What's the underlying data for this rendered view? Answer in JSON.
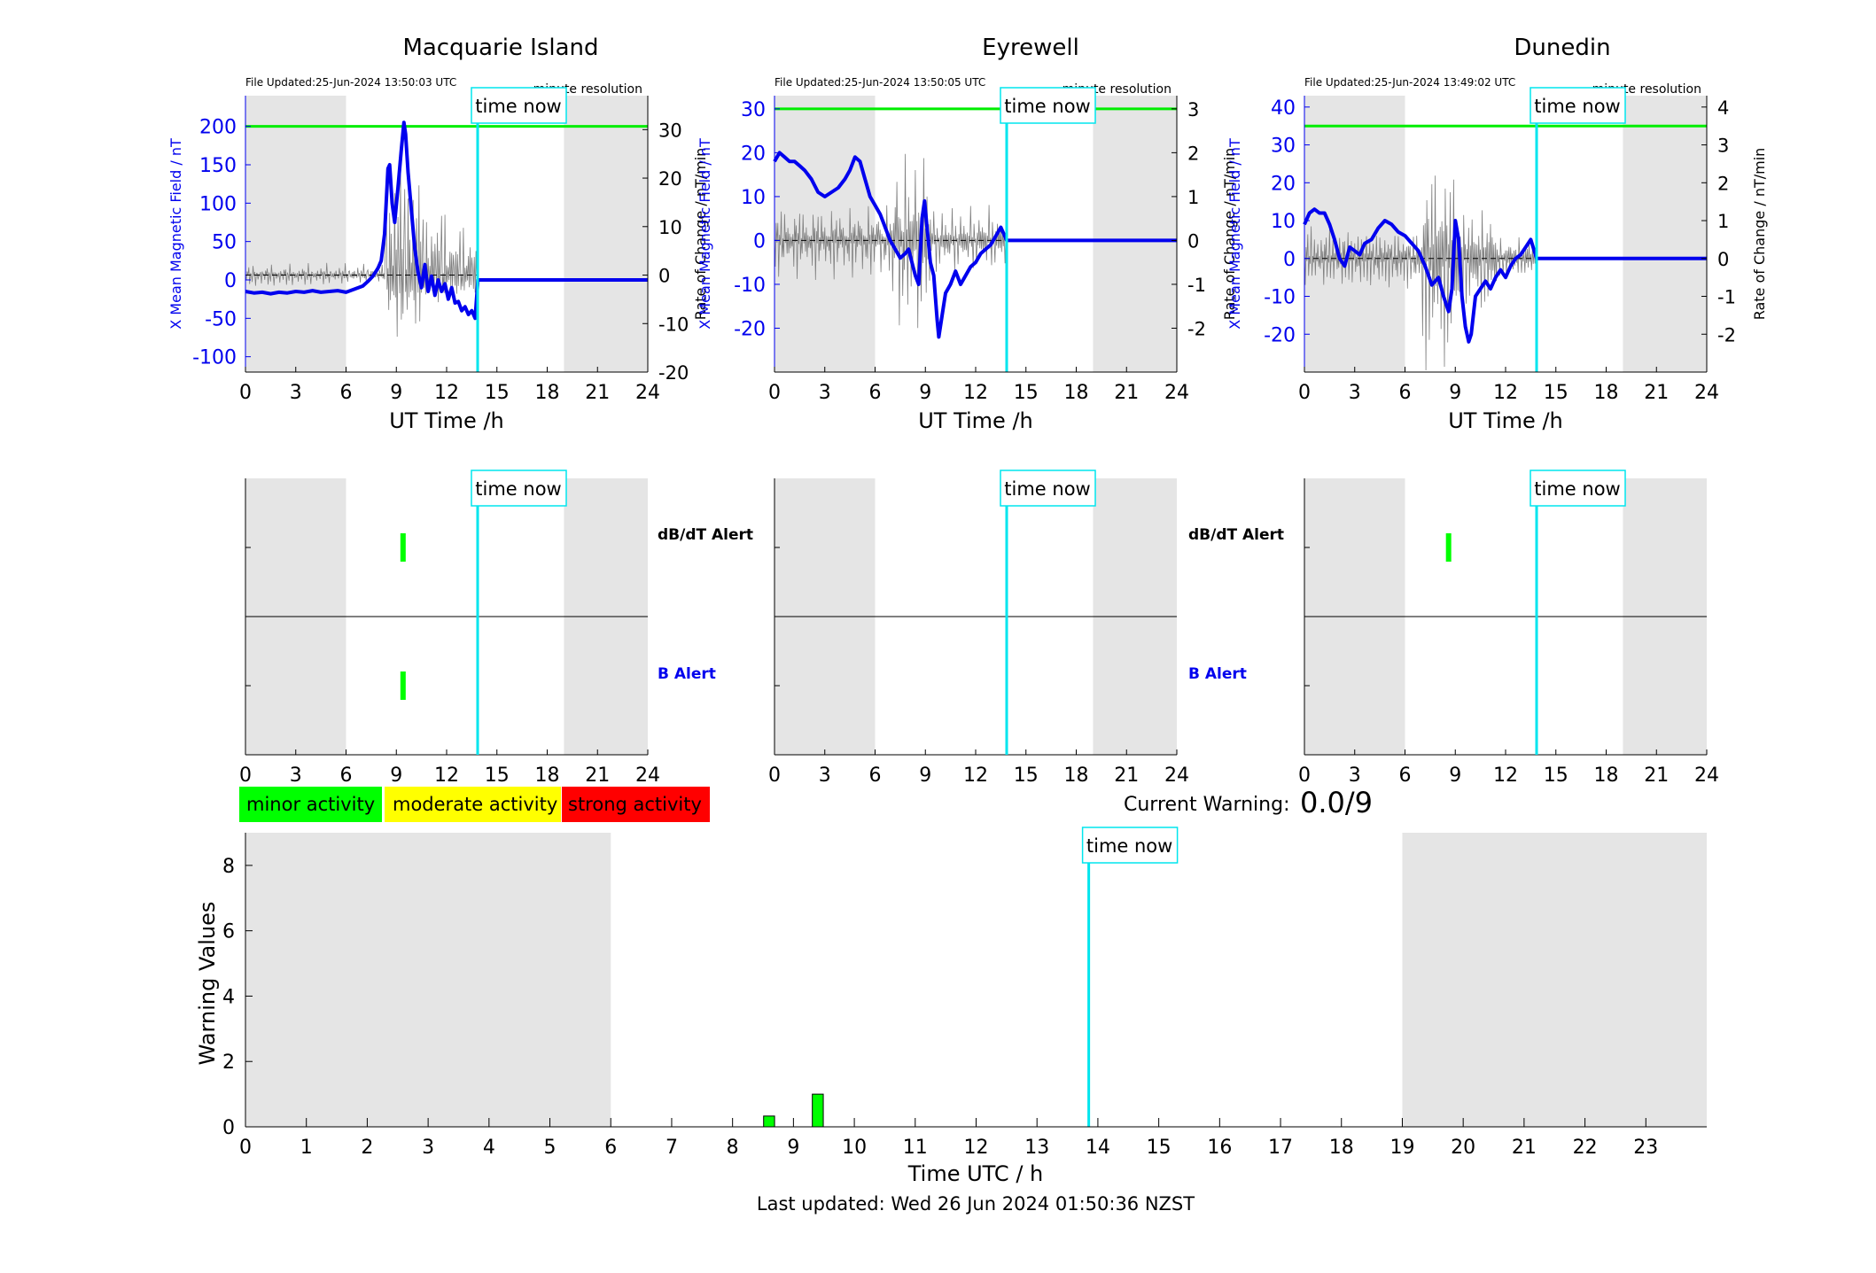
{
  "colors": {
    "night_shade": "#e5e5e5",
    "field_line": "#0000ee",
    "rate_line": "#808080",
    "threshold": "#00ee00",
    "time_now": "#00e5ee",
    "minor": "#00ff00",
    "moderate": "#ffff00",
    "strong": "#ff0000"
  },
  "labels": {
    "time_now": "time now",
    "ut_axis": "UT Time /h",
    "y_left": "X Mean Magnetic Field / nT",
    "y_right": "Rate of Change / nT/min",
    "resolution": "minute resolution",
    "dbdt_alert": "dB/dT Alert",
    "b_alert": "B Alert",
    "current_warning_label": "Current Warning:",
    "current_warning_value": "0.0/9",
    "warning_ylabel": "Warning Values",
    "warning_xlabel": "Time UTC / h",
    "last_updated": "Last updated: Wed 26 Jun 2024 01:50:36 NZST"
  },
  "legend": [
    {
      "label": "minor activity",
      "color": "#00ff00"
    },
    {
      "label": "moderate activity",
      "color": "#ffff00"
    },
    {
      "label": "strong activity",
      "color": "#ff0000"
    }
  ],
  "chart_data": [
    {
      "type": "line",
      "station": "Macquarie Island",
      "file_updated": "File Updated:25-Jun-2024 13:50:03 UTC",
      "xlim": [
        0,
        24
      ],
      "x_ticks": [
        0,
        3,
        6,
        9,
        12,
        15,
        18,
        21,
        24
      ],
      "ylim_left": [
        -120,
        240
      ],
      "y_ticks_left": [
        200,
        150,
        100,
        50,
        0,
        -50,
        -100
      ],
      "ylim_right": [
        -20,
        37
      ],
      "y_ticks_right": [
        30,
        20,
        10,
        0,
        -10,
        -20
      ],
      "threshold_left": 200,
      "night_shading": [
        [
          0,
          6
        ],
        [
          19,
          24
        ]
      ],
      "time_now": 13.85,
      "field_series": {
        "x": [
          0,
          0.5,
          1,
          1.5,
          2,
          2.5,
          3,
          3.5,
          4,
          4.5,
          5,
          5.5,
          6,
          6.5,
          7,
          7.3,
          7.6,
          7.9,
          8.1,
          8.3,
          8.5,
          8.6,
          8.75,
          8.9,
          9.1,
          9.3,
          9.45,
          9.55,
          9.7,
          9.9,
          10.1,
          10.3,
          10.5,
          10.7,
          10.9,
          11.1,
          11.3,
          11.5,
          11.7,
          11.9,
          12.1,
          12.3,
          12.5,
          12.7,
          12.9,
          13.1,
          13.3,
          13.5,
          13.7,
          13.85,
          13.86,
          24
        ],
        "y": [
          -15,
          -17,
          -16,
          -18,
          -16,
          -17,
          -15,
          -16,
          -14,
          -16,
          -15,
          -14,
          -16,
          -12,
          -8,
          -2,
          5,
          15,
          25,
          60,
          145,
          150,
          100,
          75,
          120,
          170,
          205,
          190,
          140,
          90,
          40,
          10,
          -10,
          20,
          -15,
          5,
          -20,
          0,
          -15,
          -5,
          -25,
          -10,
          -30,
          -28,
          -40,
          -35,
          -45,
          -40,
          -50,
          -5,
          0,
          0
        ]
      },
      "rate_noise": [
        0.5,
        -1,
        1.5,
        -0.5,
        2,
        -2,
        1,
        0.3,
        -1.5,
        2.5,
        -0.8,
        1.2,
        -2.2,
        0.7,
        1.8,
        -1.2,
        0.2,
        -0.6,
        2.1,
        -1.9,
        0.9,
        -0.3
      ],
      "rate_active": [
        [
          8.3,
          10.5,
          12
        ],
        [
          10.5,
          12,
          7
        ],
        [
          12,
          13.85,
          5
        ]
      ]
    },
    {
      "type": "line",
      "station": "Eyrewell",
      "file_updated": "File Updated:25-Jun-2024 13:50:05 UTC",
      "xlim": [
        0,
        24
      ],
      "x_ticks": [
        0,
        3,
        6,
        9,
        12,
        15,
        18,
        21,
        24
      ],
      "ylim_left": [
        -30,
        33
      ],
      "y_ticks_left": [
        30,
        20,
        10,
        0,
        -10,
        -20
      ],
      "ylim_right": [
        -3,
        3.3
      ],
      "y_ticks_right": [
        3,
        2,
        1,
        0,
        -1,
        -2
      ],
      "y_ticks_right_labels": [
        "3",
        "2",
        "1",
        "0",
        "-1",
        "-2"
      ],
      "threshold_left": 30,
      "night_shading": [
        [
          0,
          6
        ],
        [
          19,
          24
        ]
      ],
      "time_now": 13.85,
      "field_series": {
        "x": [
          0,
          0.3,
          0.6,
          0.9,
          1.2,
          1.5,
          1.8,
          2.2,
          2.6,
          3.0,
          3.4,
          3.8,
          4.2,
          4.5,
          4.8,
          5.1,
          5.4,
          5.7,
          6.0,
          6.3,
          6.6,
          6.9,
          7.2,
          7.5,
          7.8,
          8.0,
          8.2,
          8.4,
          8.6,
          8.8,
          8.95,
          9.1,
          9.3,
          9.5,
          9.7,
          9.8,
          10.0,
          10.2,
          10.5,
          10.8,
          11.1,
          11.4,
          11.7,
          12.0,
          12.3,
          12.6,
          12.9,
          13.2,
          13.5,
          13.85,
          14.0,
          24
        ],
        "y": [
          18,
          20,
          19,
          18,
          18,
          17,
          16,
          14,
          11,
          10,
          11,
          12,
          14,
          16,
          19,
          18,
          14,
          10,
          8,
          6,
          3,
          0,
          -2,
          -4,
          -3,
          -2,
          -5,
          -8,
          -10,
          5,
          9,
          3,
          -5,
          -8,
          -18,
          -22,
          -17,
          -12,
          -10,
          -7,
          -10,
          -8,
          -6,
          -5,
          -3,
          -2,
          -1,
          1,
          3,
          0,
          0,
          0
        ]
      },
      "rate_noise": [
        0.3,
        -0.6,
        0.8,
        -0.2,
        0.5,
        -0.9,
        0.4,
        -0.3,
        0.7,
        -0.5,
        0.2,
        -0.7,
        0.6,
        -0.1,
        0.9,
        -0.4,
        0.3,
        -0.8,
        0.5,
        -0.2,
        0.1,
        -0.6
      ],
      "rate_active": [
        [
          7,
          9.3,
          2.5
        ],
        [
          9.3,
          13.85,
          0.9
        ]
      ]
    },
    {
      "type": "line",
      "station": "Dunedin",
      "file_updated": "File Updated:25-Jun-2024 13:49:02 UTC",
      "xlim": [
        0,
        24
      ],
      "x_ticks": [
        0,
        3,
        6,
        9,
        12,
        15,
        18,
        21,
        24
      ],
      "ylim_left": [
        -30,
        43
      ],
      "y_ticks_left": [
        40,
        30,
        20,
        10,
        0,
        -10,
        -20
      ],
      "ylim_right": [
        -3,
        4.3
      ],
      "y_ticks_right": [
        4,
        3,
        2,
        1,
        0,
        -1,
        -2
      ],
      "threshold_left": 35,
      "night_shading": [
        [
          0,
          6
        ],
        [
          19,
          24
        ]
      ],
      "time_now": 13.85,
      "field_series": {
        "x": [
          0,
          0.3,
          0.6,
          0.9,
          1.2,
          1.5,
          1.8,
          2.1,
          2.4,
          2.7,
          3.0,
          3.3,
          3.6,
          4.0,
          4.4,
          4.8,
          5.2,
          5.6,
          6.0,
          6.4,
          6.8,
          7.2,
          7.6,
          8.0,
          8.3,
          8.6,
          8.8,
          9.0,
          9.2,
          9.4,
          9.6,
          9.8,
          9.95,
          10.2,
          10.5,
          10.8,
          11.1,
          11.4,
          11.7,
          12.0,
          12.3,
          12.6,
          12.9,
          13.2,
          13.5,
          13.85,
          13.86,
          24
        ],
        "y": [
          9,
          12,
          13,
          12,
          12,
          9,
          5,
          0,
          -2,
          3,
          2,
          1,
          4,
          5,
          8,
          10,
          9,
          7,
          6,
          4,
          2,
          -2,
          -7,
          -5,
          -10,
          -14,
          -8,
          10,
          5,
          -10,
          -18,
          -22,
          -20,
          -10,
          -8,
          -6,
          -8,
          -5,
          -3,
          -5,
          -2,
          0,
          1,
          3,
          5,
          0,
          0,
          0
        ]
      },
      "rate_noise": [
        0.4,
        -0.7,
        0.6,
        -0.3,
        0.8,
        -0.5,
        0.2,
        -0.4,
        0.9,
        -0.6,
        0.3,
        -0.2,
        0.5,
        -0.8,
        0.7,
        -0.1,
        0.4,
        -0.6,
        0.2,
        -0.3,
        0.6,
        -0.5
      ],
      "rate_active": [
        [
          7,
          9.2,
          3.7
        ],
        [
          9.2,
          11.5,
          2
        ],
        [
          11.5,
          13.85,
          0.8
        ]
      ]
    },
    {
      "type": "alert",
      "station": "Macquarie Island",
      "xlim": [
        0,
        24
      ],
      "x_ticks": [
        0,
        3,
        6,
        9,
        12,
        15,
        18,
        21,
        24
      ],
      "night_shading": [
        [
          0,
          6
        ],
        [
          19,
          24
        ]
      ],
      "time_now": 13.85,
      "dbdt_alerts": [
        9.4
      ],
      "b_alerts": [
        9.4
      ]
    },
    {
      "type": "alert",
      "station": "Eyrewell",
      "xlim": [
        0,
        24
      ],
      "x_ticks": [
        0,
        3,
        6,
        9,
        12,
        15,
        18,
        21,
        24
      ],
      "night_shading": [
        [
          0,
          6
        ],
        [
          19,
          24
        ]
      ],
      "time_now": 13.85,
      "dbdt_alerts": [],
      "b_alerts": []
    },
    {
      "type": "alert",
      "station": "Dunedin",
      "xlim": [
        0,
        24
      ],
      "x_ticks": [
        0,
        3,
        6,
        9,
        12,
        15,
        18,
        21,
        24
      ],
      "night_shading": [
        [
          0,
          6
        ],
        [
          19,
          24
        ]
      ],
      "time_now": 13.85,
      "dbdt_alerts": [
        8.6
      ],
      "b_alerts": []
    },
    {
      "type": "bar",
      "title": "",
      "xlabel": "Time UTC / h",
      "ylabel": "Warning Values",
      "xlim": [
        0,
        24
      ],
      "ylim": [
        0,
        9
      ],
      "x_ticks": [
        0,
        1,
        2,
        3,
        4,
        5,
        6,
        7,
        8,
        9,
        10,
        11,
        12,
        13,
        14,
        15,
        16,
        17,
        18,
        19,
        20,
        21,
        22,
        23
      ],
      "y_ticks": [
        0,
        2,
        4,
        6,
        8
      ],
      "night_shading": [
        [
          0,
          6
        ],
        [
          19,
          24
        ]
      ],
      "time_now": 13.85,
      "bars": [
        {
          "x": 8.6,
          "value": 0.33,
          "level": "minor"
        },
        {
          "x": 9.4,
          "value": 1.0,
          "level": "minor"
        }
      ]
    }
  ]
}
